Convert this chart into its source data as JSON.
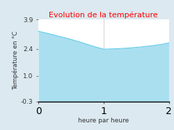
{
  "title": "Evolution de la température",
  "xlabel": "heure par heure",
  "ylabel": "Température en °C",
  "x": [
    0,
    0.1,
    0.2,
    0.3,
    0.4,
    0.5,
    0.6,
    0.7,
    0.8,
    0.9,
    1.0,
    1.05,
    1.1,
    1.2,
    1.3,
    1.4,
    1.5,
    1.6,
    1.7,
    1.8,
    1.9,
    2.0
  ],
  "y": [
    3.3,
    3.22,
    3.14,
    3.05,
    2.97,
    2.88,
    2.78,
    2.68,
    2.57,
    2.47,
    2.38,
    2.38,
    2.39,
    2.4,
    2.42,
    2.44,
    2.47,
    2.5,
    2.54,
    2.58,
    2.63,
    2.7
  ],
  "ylim": [
    -0.3,
    3.9
  ],
  "xlim": [
    0,
    2
  ],
  "yticks": [
    -0.3,
    1.0,
    2.4,
    3.9
  ],
  "xticks": [
    0,
    1,
    2
  ],
  "line_color": "#5bc8e8",
  "fill_color": "#aadff0",
  "bg_color": "#dce9f0",
  "plot_bg_color": "#ffffff",
  "title_color": "#ff0000",
  "title_fontsize": 8,
  "label_fontsize": 6.5,
  "tick_fontsize": 6.5,
  "grid_color": "#cccccc"
}
